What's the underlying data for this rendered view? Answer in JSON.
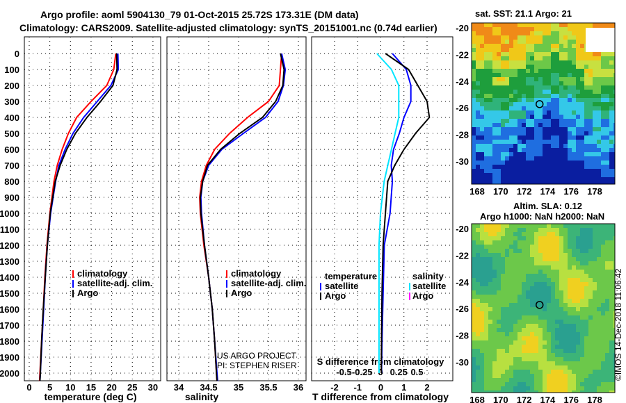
{
  "header": {
    "line1": "Argo profile: aoml 5904130_79 01-Oct-2015 25.72S 173.31E (DM data)",
    "line2": "Climatology: CARS2009. Satellite-adjusted climatology: synTS_20151001.nc (0.74d earlier)"
  },
  "footer": {
    "credit": "©IMOS 14-Dec-2018 11:06:42",
    "project1": "US ARGO PROJECT",
    "project2": "PI: STEPHEN RISER"
  },
  "colors": {
    "climatology": "#ff0000",
    "satellite": "#0000ff",
    "argo": "#000000",
    "s_satellite": "#00e5ff",
    "s_argo": "#ff00ff"
  },
  "chart_data": [
    {
      "type": "line",
      "title": "temperature profile",
      "xlabel": "temperature (deg C)",
      "ylabel": "depth",
      "xlim": [
        -1,
        31
      ],
      "ylim": [
        2050,
        -100
      ],
      "xticks": [
        0,
        5,
        10,
        15,
        20,
        25,
        30
      ],
      "yticks": [
        0,
        100,
        200,
        300,
        400,
        500,
        600,
        700,
        800,
        900,
        1000,
        1100,
        1200,
        1300,
        1400,
        1500,
        1600,
        1700,
        1800,
        1900,
        2000
      ],
      "legend": [
        "climatology",
        "satellite-adj. clim.",
        "Argo"
      ],
      "depth": [
        0,
        100,
        200,
        300,
        400,
        500,
        600,
        700,
        800,
        1000,
        1200,
        1400,
        1600,
        1800,
        2000,
        2050
      ],
      "series": [
        {
          "name": "climatology",
          "values": [
            21,
            20.5,
            18.8,
            15,
            11.5,
            9.5,
            8,
            6.8,
            6,
            5,
            4.3,
            3.8,
            3.4,
            3.0,
            2.6,
            2.5
          ]
        },
        {
          "name": "satellite-adj. clim.",
          "values": [
            21.5,
            21.6,
            19.8,
            16.5,
            13.2,
            10.6,
            8.7,
            7.2,
            6.4,
            5.2,
            4.4,
            3.9,
            3.5,
            3.1,
            2.7,
            2.6
          ]
        },
        {
          "name": "Argo",
          "values": [
            21.2,
            21.3,
            20.3,
            17.3,
            14,
            11.2,
            9.1,
            7.5,
            6.3,
            5.1,
            4.4,
            3.9,
            3.4,
            3.0,
            2.7,
            2.6
          ]
        }
      ]
    },
    {
      "type": "line",
      "title": "salinity profile",
      "xlabel": "salinity",
      "xlim": [
        33.8,
        36.2
      ],
      "ylim": [
        2050,
        -100
      ],
      "xticks": [
        34,
        34.5,
        35,
        35.5,
        36
      ],
      "legend": [
        "climatology",
        "satellite-adj. clim.",
        "Argo"
      ],
      "depth": [
        0,
        100,
        200,
        300,
        400,
        500,
        600,
        700,
        800,
        900,
        1000,
        1200,
        1400,
        1600,
        1800,
        2000,
        2050
      ],
      "series": [
        {
          "name": "climatology",
          "values": [
            35.72,
            35.7,
            35.68,
            35.5,
            35.15,
            34.85,
            34.6,
            34.46,
            34.38,
            34.35,
            34.36,
            34.42,
            34.5,
            34.56,
            34.6,
            34.63,
            34.64
          ]
        },
        {
          "name": "satellite-adj. clim.",
          "values": [
            35.72,
            35.78,
            35.75,
            35.66,
            35.45,
            35.08,
            34.72,
            34.5,
            34.4,
            34.37,
            34.38,
            34.43,
            34.5,
            34.56,
            34.6,
            34.64,
            34.65
          ]
        },
        {
          "name": "Argo",
          "values": [
            35.7,
            35.76,
            35.74,
            35.62,
            35.4,
            35.02,
            34.7,
            34.48,
            34.4,
            34.36,
            34.37,
            34.43,
            34.5,
            34.56,
            34.6,
            34.63,
            34.64
          ]
        }
      ]
    },
    {
      "type": "line",
      "title": "difference from climatology",
      "xlabel": "T difference from climatology",
      "x2label": "S difference from climatology",
      "xlim": [
        -3,
        3
      ],
      "x2lim": [
        -0.95,
        0.95
      ],
      "ylim": [
        2050,
        -100
      ],
      "xticks": [
        -2,
        -1,
        0,
        1,
        2
      ],
      "x2ticks": [
        -0.5,
        -0.25,
        0,
        0.25,
        0.5
      ],
      "legend_t": {
        "title": "temperature",
        "items": [
          "satellite",
          "Argo"
        ]
      },
      "legend_s": {
        "title": "salinity",
        "items": [
          "satellite",
          "Argo"
        ]
      },
      "depth": [
        0,
        100,
        200,
        300,
        400,
        500,
        600,
        700,
        800,
        1000,
        1200,
        1500,
        1800,
        2000
      ],
      "series": [
        {
          "name": "T satellite",
          "values": [
            0.5,
            1.1,
            1.3,
            1.3,
            1.0,
            0.8,
            0.55,
            0.45,
            0.5,
            0.4,
            0.15,
            0.1,
            0.05,
            0.03
          ]
        },
        {
          "name": "T Argo",
          "values": [
            0.2,
            1.2,
            1.6,
            2.0,
            2.1,
            1.5,
            1.0,
            0.6,
            0.3,
            0.2,
            0.1,
            0.05,
            0.03,
            0.02
          ]
        },
        {
          "name": "S satellite",
          "values": [
            -0.05,
            0.15,
            0.25,
            0.25,
            0.25,
            0.2,
            0.15,
            0.1,
            0.05,
            0.0,
            -0.02,
            -0.02,
            -0.02,
            -0.02
          ]
        }
      ]
    },
    {
      "type": "heatmap",
      "title": "sat. SST: 21.1 Argo: 21",
      "xticks": [
        168,
        170,
        172,
        174,
        176,
        178
      ],
      "yticks": [
        -20,
        -22,
        -24,
        -26,
        -28,
        -30
      ],
      "marker": {
        "lon": 173.31,
        "lat": -25.72
      }
    },
    {
      "type": "heatmap",
      "title": "Altim. SLA: 0.12",
      "subtitle": "Argo h1000: NaN h2000: NaN",
      "xticks": [
        168,
        170,
        172,
        174,
        176,
        178
      ],
      "yticks": [
        -20,
        -22,
        -24,
        -26,
        -28,
        -30
      ],
      "marker": {
        "lon": 173.31,
        "lat": -25.72
      }
    }
  ]
}
